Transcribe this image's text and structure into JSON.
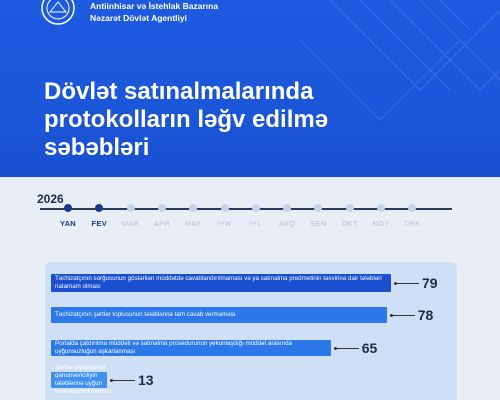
{
  "header": {
    "agency_line1": "Antiinhisar və İstehlak Bazarına",
    "agency_line2": "Nəzarət Dövlət Agentliyi",
    "title_line1": "Dövlət satınalmalarında",
    "title_line2": "protokolların ləğv edilmə",
    "title_line3": "səbəbləri"
  },
  "timeline": {
    "year": "2026",
    "months": [
      "YAN",
      "FEV",
      "MAR",
      "APR",
      "MAY",
      "İYN",
      "İYL",
      "AVQ",
      "SEN",
      "OKT",
      "NOY",
      "DEK"
    ],
    "active_months": [
      "YAN",
      "FEV"
    ]
  },
  "colors": {
    "brand_blue": "#1d5ae0",
    "navy": "#1a3a8a",
    "panel": "#cfe0f6"
  },
  "chart_data": {
    "type": "bar",
    "orientation": "horizontal",
    "categories": [
      "Təchizatçının sorğusunun göstərilən müddətdə cavablandırılmaması və ya satınalma predmetinin təsvirinə dair tələbləri natamam olması",
      "Təchizatçının şərtlər toplusunun tələblərinə tam cavab verməməsi",
      "Portalda çatdırılma müddəti və satınalma prosedurunun yekunlaşdığı müddət arasında uyğunsuzluğun aşkarlanması",
      "Şərtlər toplusunun qanunvericiliyin tələblərinə uyğun formalaşdırılmaması"
    ],
    "values": [
      79,
      78,
      65,
      13
    ]
  }
}
